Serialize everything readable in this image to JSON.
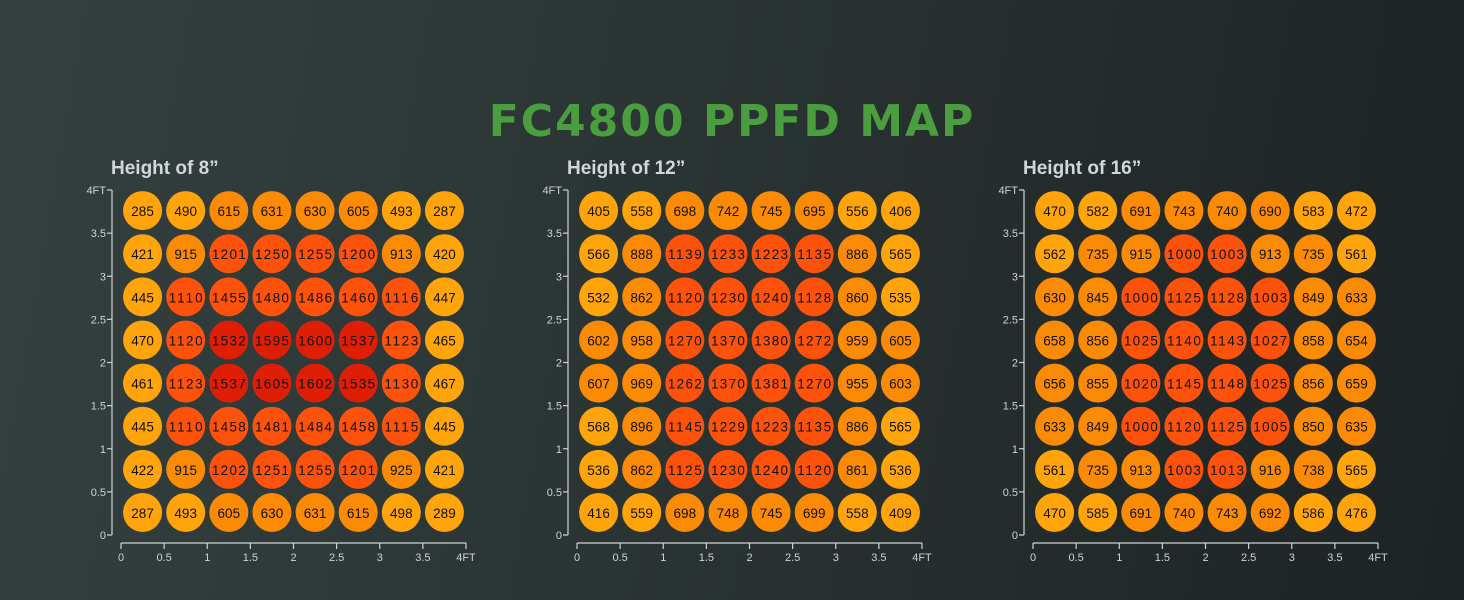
{
  "title": "FC4800 PPFD MAP",
  "chart_data": [
    {
      "type": "heatmap",
      "title": "Height of 8”",
      "xlabel": "",
      "ylabel": "",
      "x_ticks": [
        "0",
        "0.5",
        "1",
        "1.5",
        "2",
        "2.5",
        "3",
        "3.5",
        "4FT"
      ],
      "y_ticks": [
        "0",
        "0.5",
        "1",
        "1.5",
        "2",
        "2.5",
        "3",
        "3.5",
        "4FT"
      ],
      "xlim": [
        0,
        4
      ],
      "ylim": [
        0,
        4
      ],
      "rows_top_to_bottom": [
        [
          285,
          490,
          615,
          631,
          630,
          605,
          493,
          287
        ],
        [
          421,
          915,
          1201,
          1250,
          1255,
          1200,
          913,
          420
        ],
        [
          445,
          1110,
          1455,
          1480,
          1486,
          1460,
          1116,
          447
        ],
        [
          470,
          1120,
          1532,
          1595,
          1600,
          1537,
          1123,
          465
        ],
        [
          461,
          1123,
          1537,
          1605,
          1602,
          1535,
          1130,
          467
        ],
        [
          445,
          1110,
          1458,
          1481,
          1484,
          1458,
          1115,
          445
        ],
        [
          422,
          915,
          1202,
          1251,
          1255,
          1201,
          925,
          421
        ],
        [
          287,
          493,
          605,
          630,
          631,
          615,
          498,
          289
        ]
      ]
    },
    {
      "type": "heatmap",
      "title": "Height of 12”",
      "xlabel": "",
      "ylabel": "",
      "x_ticks": [
        "0",
        "0.5",
        "1",
        "1.5",
        "2",
        "2.5",
        "3",
        "3.5",
        "4FT"
      ],
      "y_ticks": [
        "0",
        "0.5",
        "1",
        "1.5",
        "2",
        "2.5",
        "3",
        "3.5",
        "4FT"
      ],
      "xlim": [
        0,
        4
      ],
      "ylim": [
        0,
        4
      ],
      "rows_top_to_bottom": [
        [
          405,
          558,
          698,
          742,
          745,
          695,
          556,
          406
        ],
        [
          566,
          888,
          1139,
          1233,
          1223,
          1135,
          886,
          565
        ],
        [
          532,
          862,
          1120,
          1230,
          1240,
          1128,
          860,
          535
        ],
        [
          602,
          958,
          1270,
          1370,
          1380,
          1272,
          959,
          605
        ],
        [
          607,
          969,
          1262,
          1370,
          1381,
          1270,
          955,
          603
        ],
        [
          568,
          896,
          1145,
          1229,
          1223,
          1135,
          886,
          565
        ],
        [
          536,
          862,
          1125,
          1230,
          1240,
          1120,
          861,
          536
        ],
        [
          416,
          559,
          698,
          748,
          745,
          699,
          558,
          409
        ]
      ]
    },
    {
      "type": "heatmap",
      "title": "Height of 16”",
      "xlabel": "",
      "ylabel": "",
      "x_ticks": [
        "0",
        "0.5",
        "1",
        "1.5",
        "2",
        "2.5",
        "3",
        "3.5",
        "4FT"
      ],
      "y_ticks": [
        "0",
        "0.5",
        "1",
        "1.5",
        "2",
        "2.5",
        "3",
        "3.5",
        "4FT"
      ],
      "xlim": [
        0,
        4
      ],
      "ylim": [
        0,
        4
      ],
      "rows_top_to_bottom": [
        [
          470,
          582,
          691,
          743,
          740,
          690,
          583,
          472
        ],
        [
          562,
          735,
          915,
          1000,
          1003,
          913,
          735,
          561
        ],
        [
          630,
          845,
          1000,
          1125,
          1128,
          1003,
          849,
          633
        ],
        [
          658,
          856,
          1025,
          1140,
          1143,
          1027,
          858,
          654
        ],
        [
          656,
          855,
          1020,
          1145,
          1148,
          1025,
          856,
          659
        ],
        [
          633,
          849,
          1000,
          1120,
          1125,
          1005,
          850,
          635
        ],
        [
          561,
          735,
          913,
          1003,
          1013,
          916,
          738,
          565
        ],
        [
          470,
          585,
          691,
          740,
          743,
          692,
          586,
          476
        ]
      ]
    }
  ],
  "colors": {
    "title": "#4a9e3f",
    "low": "#ffa40a",
    "mid": "#fb8a05",
    "high": "#fd520c",
    "peak": "#df1e06",
    "axis": "#cfd3d3"
  }
}
